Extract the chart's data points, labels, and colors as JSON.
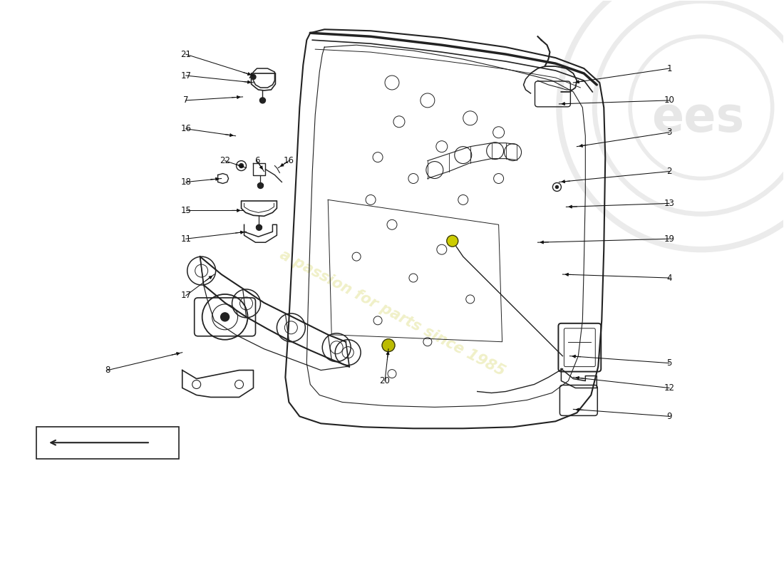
{
  "background_color": "#ffffff",
  "line_color": "#222222",
  "label_color": "#111111",
  "watermark_text": "a passion for parts since 1985",
  "watermark_color": "#f0f0c8",
  "fig_width": 11.0,
  "fig_height": 8.0,
  "dpi": 100,
  "label_fontsize": 8.5,
  "labels_right": [
    {
      "num": "1",
      "lpos": [
        9.4,
        7.05
      ],
      "aend": [
        8.05,
        6.85
      ]
    },
    {
      "num": "10",
      "lpos": [
        9.4,
        6.6
      ],
      "aend": [
        7.85,
        6.55
      ]
    },
    {
      "num": "3",
      "lpos": [
        9.4,
        6.15
      ],
      "aend": [
        8.1,
        5.95
      ]
    },
    {
      "num": "2",
      "lpos": [
        9.4,
        5.6
      ],
      "aend": [
        7.85,
        5.45
      ]
    },
    {
      "num": "13",
      "lpos": [
        9.4,
        5.15
      ],
      "aend": [
        7.95,
        5.1
      ]
    },
    {
      "num": "19",
      "lpos": [
        9.4,
        4.65
      ],
      "aend": [
        7.55,
        4.6
      ]
    },
    {
      "num": "4",
      "lpos": [
        9.4,
        4.1
      ],
      "aend": [
        7.9,
        4.15
      ]
    },
    {
      "num": "5",
      "lpos": [
        9.4,
        2.9
      ],
      "aend": [
        8.0,
        3.0
      ]
    },
    {
      "num": "12",
      "lpos": [
        9.4,
        2.55
      ],
      "aend": [
        8.05,
        2.7
      ]
    },
    {
      "num": "9",
      "lpos": [
        9.4,
        2.15
      ],
      "aend": [
        8.05,
        2.25
      ]
    }
  ],
  "labels_left": [
    {
      "num": "21",
      "lpos": [
        2.6,
        7.25
      ],
      "aend": [
        3.55,
        6.95
      ]
    },
    {
      "num": "17",
      "lpos": [
        2.6,
        6.95
      ],
      "aend": [
        3.55,
        6.85
      ]
    },
    {
      "num": "7",
      "lpos": [
        2.6,
        6.6
      ],
      "aend": [
        3.4,
        6.65
      ]
    },
    {
      "num": "16",
      "lpos": [
        2.6,
        6.2
      ],
      "aend": [
        3.3,
        6.1
      ]
    },
    {
      "num": "22",
      "lpos": [
        3.15,
        5.75
      ],
      "aend": [
        3.45,
        5.65
      ]
    },
    {
      "num": "6",
      "lpos": [
        3.6,
        5.75
      ],
      "aend": [
        3.7,
        5.6
      ]
    },
    {
      "num": "16",
      "lpos": [
        4.05,
        5.75
      ],
      "aend": [
        3.9,
        5.65
      ]
    },
    {
      "num": "18",
      "lpos": [
        2.6,
        5.45
      ],
      "aend": [
        3.1,
        5.5
      ]
    },
    {
      "num": "15",
      "lpos": [
        2.6,
        5.05
      ],
      "aend": [
        3.4,
        5.05
      ]
    },
    {
      "num": "11",
      "lpos": [
        2.6,
        4.65
      ],
      "aend": [
        3.45,
        4.75
      ]
    },
    {
      "num": "17",
      "lpos": [
        2.6,
        3.85
      ],
      "aend": [
        3.0,
        4.15
      ]
    },
    {
      "num": "8",
      "lpos": [
        1.5,
        2.8
      ],
      "aend": [
        2.55,
        3.05
      ]
    },
    {
      "num": "20",
      "lpos": [
        5.4,
        2.65
      ],
      "aend": [
        5.45,
        3.1
      ]
    }
  ]
}
